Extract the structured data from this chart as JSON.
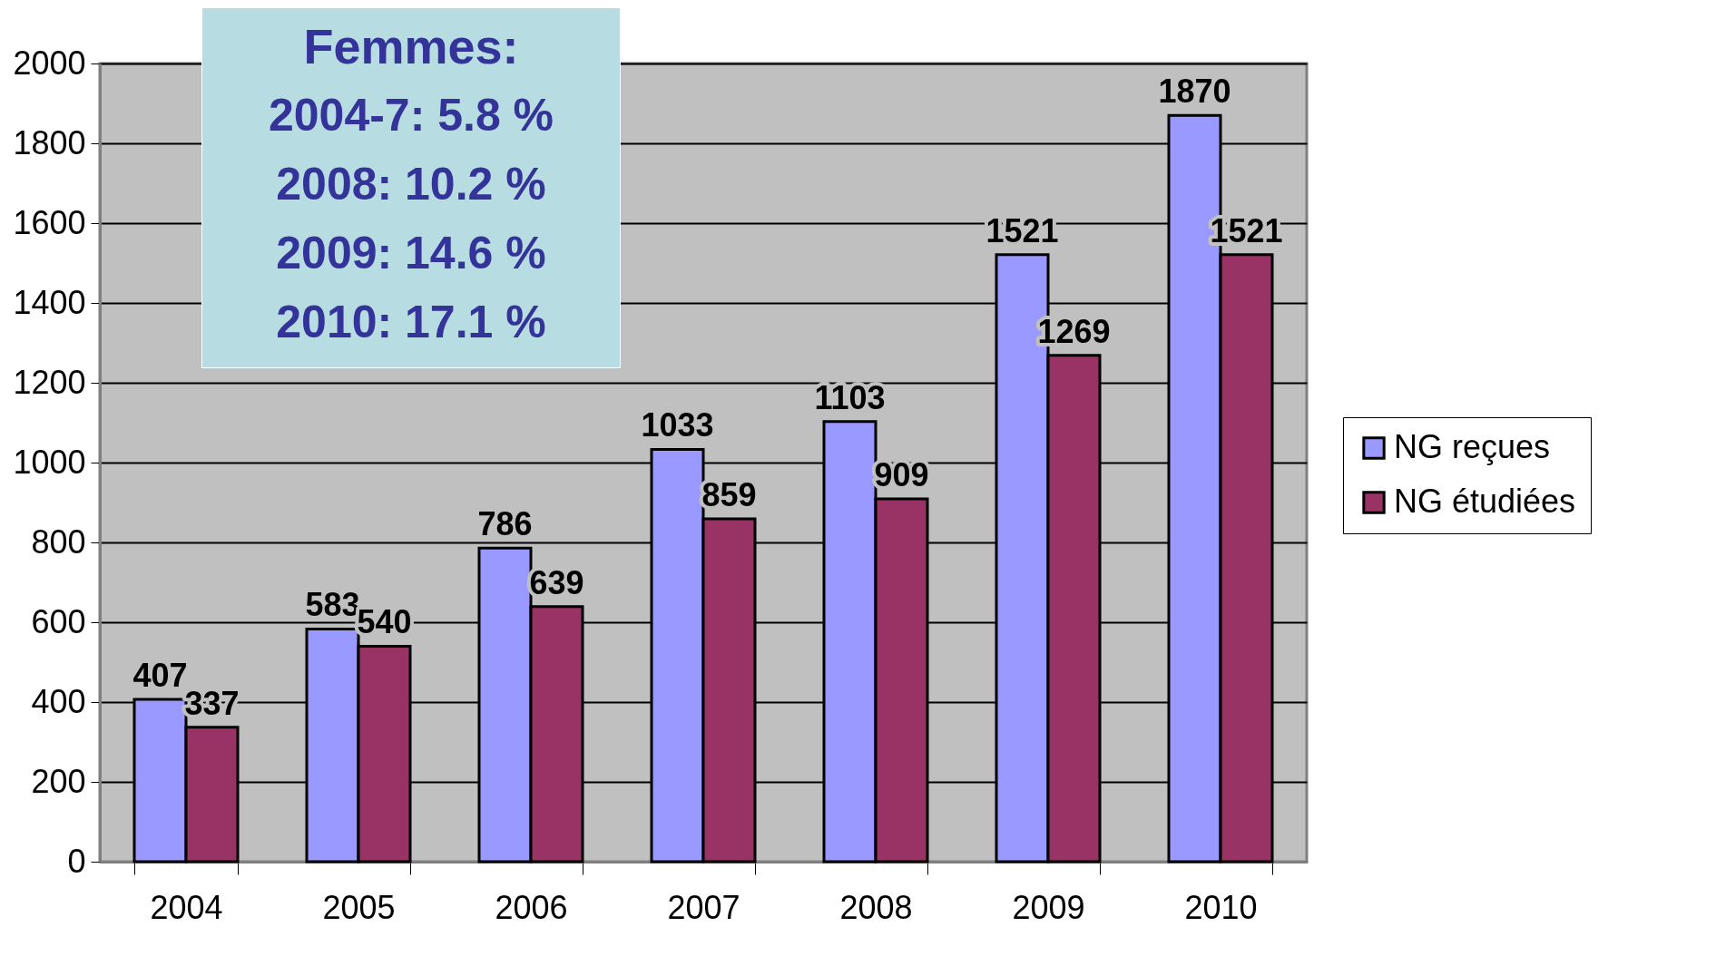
{
  "chart_data": {
    "type": "bar",
    "categories": [
      "2004",
      "2005",
      "2006",
      "2007",
      "2008",
      "2009",
      "2010"
    ],
    "series": [
      {
        "name": "NG reçues",
        "color": "#9999ff",
        "values": [
          407,
          583,
          786,
          1033,
          1103,
          1521,
          1870
        ]
      },
      {
        "name": "NG étudiées",
        "color": "#993366",
        "values": [
          337,
          540,
          639,
          859,
          909,
          1269,
          1521
        ]
      }
    ],
    "ylim": [
      0,
      2000
    ],
    "yticks": [
      0,
      200,
      400,
      600,
      800,
      1000,
      1200,
      1400,
      1600,
      1800,
      2000
    ],
    "grid": "y",
    "legend": "right",
    "data_labels": true,
    "annotations": [
      "Femmes:",
      "2004-7: 5.8 %",
      "2008: 10.2 %",
      "2009: 14.6 %",
      "2010: 17.1 %"
    ]
  }
}
